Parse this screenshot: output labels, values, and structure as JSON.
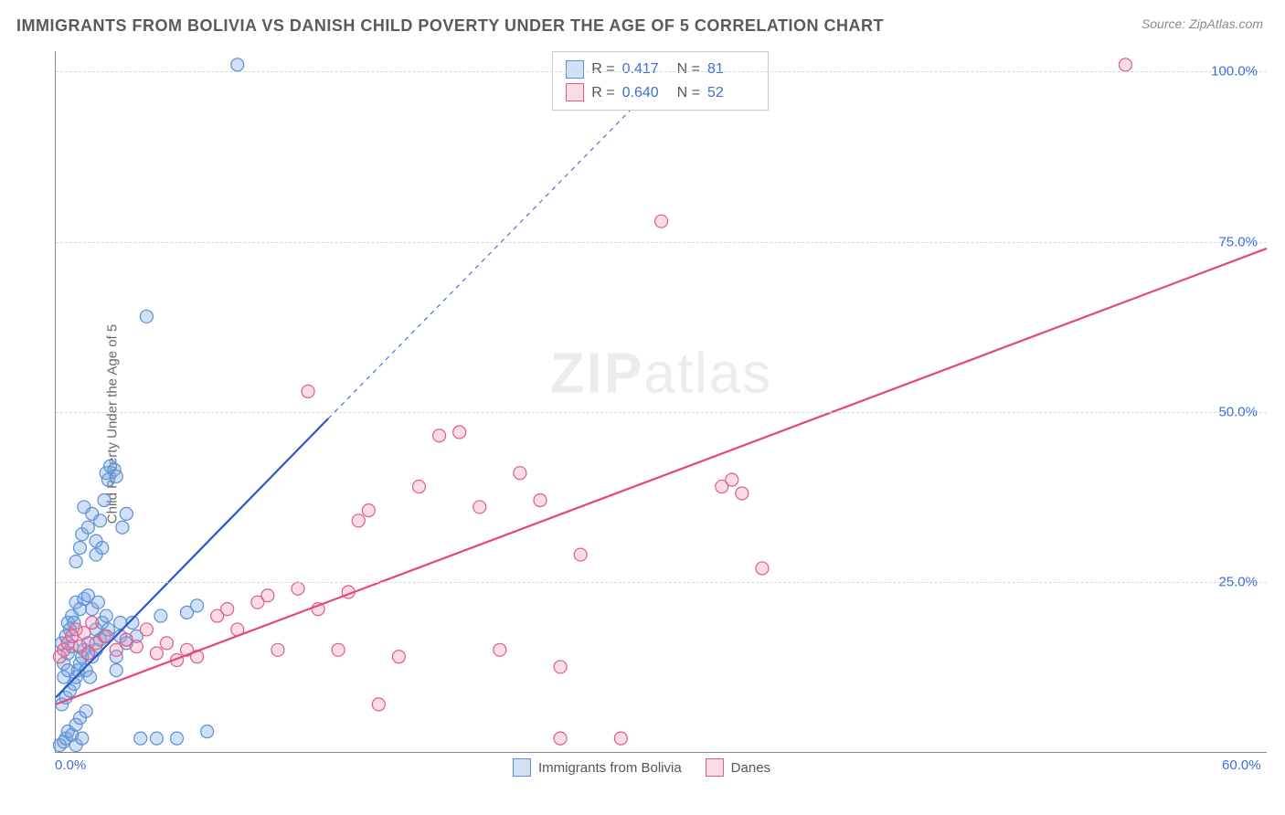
{
  "title": "IMMIGRANTS FROM BOLIVIA VS DANISH CHILD POVERTY UNDER THE AGE OF 5 CORRELATION CHART",
  "source": "Source: ZipAtlas.com",
  "ylabel": "Child Poverty Under the Age of 5",
  "watermark": {
    "bold": "ZIP",
    "rest": "atlas"
  },
  "chart": {
    "type": "scatter",
    "xlim": [
      0,
      60
    ],
    "ylim": [
      0,
      103
    ],
    "xtick_labels": [
      {
        "v": 0,
        "label": "0.0%"
      },
      {
        "v": 60,
        "label": "60.0%"
      }
    ],
    "ytick_labels": [
      {
        "v": 25,
        "label": "25.0%"
      },
      {
        "v": 50,
        "label": "50.0%"
      },
      {
        "v": 75,
        "label": "75.0%"
      },
      {
        "v": 100,
        "label": "100.0%"
      }
    ],
    "grid_y": [
      25,
      50,
      75,
      100
    ],
    "grid_color": "#d8d8d8",
    "background_color": "#ffffff",
    "marker_radius": 7,
    "marker_stroke_width": 1.2,
    "line_width": 2.2,
    "series": [
      {
        "key": "bolivia",
        "label": "Immigrants from Bolivia",
        "fill": "rgba(122,167,224,0.35)",
        "stroke": "#5b8fd6",
        "line_color": "#2a59c7",
        "R": "0.417",
        "N": "81",
        "regression": {
          "x1": 0,
          "y1": 8,
          "x2": 13.5,
          "y2": 49
        },
        "regression_ext": {
          "x1": 13.5,
          "y1": 49,
          "x2": 31,
          "y2": 102
        },
        "points": [
          [
            0.2,
            1
          ],
          [
            0.4,
            1.5
          ],
          [
            0.5,
            2
          ],
          [
            0.6,
            3
          ],
          [
            0.8,
            2.5
          ],
          [
            1,
            1
          ],
          [
            1,
            4
          ],
          [
            1.2,
            5
          ],
          [
            1.3,
            2
          ],
          [
            1.5,
            6
          ],
          [
            0.3,
            7
          ],
          [
            0.5,
            8
          ],
          [
            0.7,
            9
          ],
          [
            0.9,
            10
          ],
          [
            1,
            11
          ],
          [
            1.1,
            12
          ],
          [
            1.2,
            13
          ],
          [
            1.3,
            14
          ],
          [
            1.4,
            15
          ],
          [
            1.5,
            12
          ],
          [
            1.6,
            16
          ],
          [
            1.7,
            11
          ],
          [
            1.8,
            14
          ],
          [
            2,
            15
          ],
          [
            2,
            18
          ],
          [
            2.2,
            16.5
          ],
          [
            2.3,
            19
          ],
          [
            2.4,
            17
          ],
          [
            2.5,
            20
          ],
          [
            2.6,
            18
          ],
          [
            0.4,
            13
          ],
          [
            0.6,
            14.5
          ],
          [
            0.8,
            15.5
          ],
          [
            3,
            12
          ],
          [
            3,
            14
          ],
          [
            3.2,
            17
          ],
          [
            3.5,
            16
          ],
          [
            3.8,
            19
          ],
          [
            4,
            17
          ],
          [
            4.2,
            2
          ],
          [
            5,
            2
          ],
          [
            5.2,
            20
          ],
          [
            6,
            2
          ],
          [
            6.5,
            20.5
          ],
          [
            7,
            21.5
          ],
          [
            7.5,
            3
          ],
          [
            1,
            28
          ],
          [
            1.2,
            30
          ],
          [
            1.3,
            32
          ],
          [
            1.6,
            33
          ],
          [
            1.4,
            36
          ],
          [
            1.8,
            35
          ],
          [
            2,
            31
          ],
          [
            2.2,
            34
          ],
          [
            2.4,
            37
          ],
          [
            2.5,
            41
          ],
          [
            2.6,
            40
          ],
          [
            2.7,
            42
          ],
          [
            2.9,
            41.5
          ],
          [
            3,
            40.5
          ],
          [
            2,
            29
          ],
          [
            2.3,
            30
          ],
          [
            3.3,
            33
          ],
          [
            3.5,
            35
          ],
          [
            0.6,
            19
          ],
          [
            0.8,
            20
          ],
          [
            1,
            22
          ],
          [
            1.2,
            21
          ],
          [
            1.4,
            22.5
          ],
          [
            1.6,
            23
          ],
          [
            1.8,
            21
          ],
          [
            2.1,
            22
          ],
          [
            0.3,
            16
          ],
          [
            0.5,
            17
          ],
          [
            0.7,
            18
          ],
          [
            0.9,
            19
          ],
          [
            0.4,
            11
          ],
          [
            0.6,
            12
          ],
          [
            9,
            101
          ],
          [
            4.5,
            64
          ],
          [
            3.2,
            19
          ]
        ]
      },
      {
        "key": "danes",
        "label": "Danes",
        "fill": "rgba(236,140,170,0.30)",
        "stroke": "#e05a8a",
        "line_color": "#e8447c",
        "R": "0.640",
        "N": "52",
        "regression": {
          "x1": 0,
          "y1": 7,
          "x2": 60,
          "y2": 74
        },
        "points": [
          [
            0.2,
            14
          ],
          [
            0.4,
            15
          ],
          [
            0.6,
            16
          ],
          [
            0.8,
            17
          ],
          [
            1,
            18
          ],
          [
            1.2,
            15.5
          ],
          [
            1.4,
            17.5
          ],
          [
            1.6,
            14.5
          ],
          [
            1.8,
            19
          ],
          [
            2,
            16
          ],
          [
            2.5,
            17
          ],
          [
            3,
            15
          ],
          [
            3.5,
            16.5
          ],
          [
            4,
            15.5
          ],
          [
            4.5,
            18
          ],
          [
            5,
            14.5
          ],
          [
            5.5,
            16
          ],
          [
            6,
            13.5
          ],
          [
            6.5,
            15
          ],
          [
            7,
            14
          ],
          [
            8,
            20
          ],
          [
            8.5,
            21
          ],
          [
            9,
            18
          ],
          [
            10,
            22
          ],
          [
            10.5,
            23
          ],
          [
            11,
            15
          ],
          [
            12,
            24
          ],
          [
            13,
            21
          ],
          [
            14,
            15
          ],
          [
            14.5,
            23.5
          ],
          [
            15,
            34
          ],
          [
            15.5,
            35.5
          ],
          [
            16,
            7
          ],
          [
            17,
            14
          ],
          [
            18,
            39
          ],
          [
            19,
            46.5
          ],
          [
            20,
            47
          ],
          [
            21,
            36
          ],
          [
            22,
            15
          ],
          [
            23,
            41
          ],
          [
            24,
            37
          ],
          [
            25,
            2
          ],
          [
            25,
            12.5
          ],
          [
            26,
            29
          ],
          [
            28,
            2
          ],
          [
            30,
            78
          ],
          [
            33,
            39
          ],
          [
            33.5,
            40
          ],
          [
            34,
            38
          ],
          [
            35,
            27
          ],
          [
            53,
            101
          ],
          [
            12.5,
            53
          ]
        ]
      }
    ]
  },
  "legend": {
    "r_label": "R =",
    "n_label": "N ="
  }
}
